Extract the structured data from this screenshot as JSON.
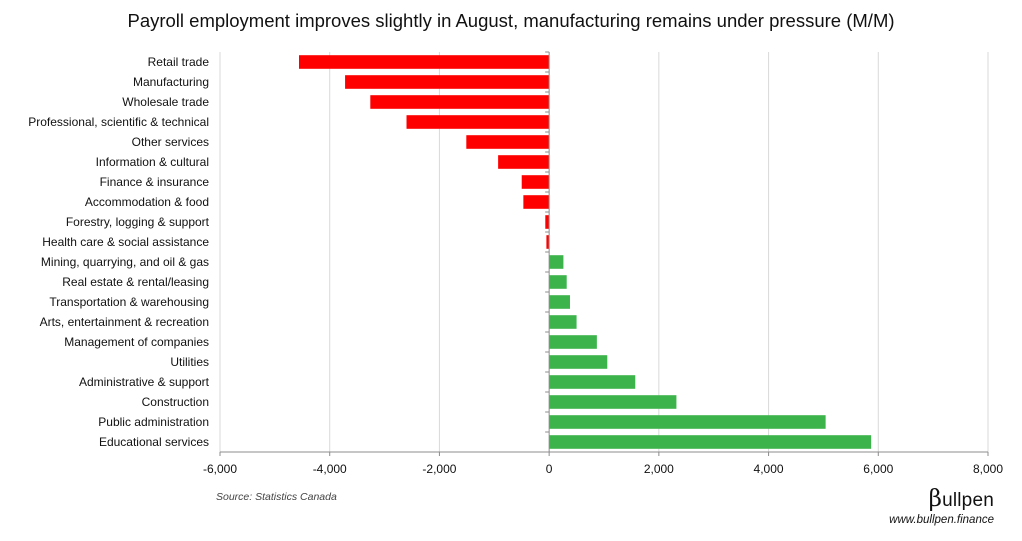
{
  "colors": {
    "negative": "#ff0000",
    "positive": "#3cb44b",
    "grid": "#d9d9d9",
    "axis": "#8c8c8c"
  },
  "chart_data": {
    "type": "bar",
    "orientation": "horizontal",
    "title": "Payroll employment improves slightly in August, manufacturing remains under pressure (M/M)",
    "xlabel": "",
    "ylabel": "",
    "xlim": [
      -6000,
      8000
    ],
    "xticks": [
      -6000,
      -4000,
      -2000,
      0,
      2000,
      4000,
      6000,
      8000
    ],
    "xtick_labels": [
      "-6,000",
      "-4,000",
      "-2,000",
      "0",
      "2,000",
      "4,000",
      "6,000",
      "8,000"
    ],
    "grid": "vertical",
    "categories": [
      "Retail trade",
      "Manufacturing",
      "Wholesale trade",
      "Professional, scientific & technical",
      "Other services",
      "Information & cultural",
      "Finance & insurance",
      "Accommodation & food",
      "Forestry, logging & support",
      "Health care & social assistance",
      "Mining, quarrying, and oil & gas",
      "Real estate & rental/leasing",
      "Transportation & warehousing",
      "Arts, entertainment & recreation",
      "Management of companies",
      "Utilities",
      "Administrative & support",
      "Construction",
      "Public administration",
      "Educational services"
    ],
    "values": [
      -4560,
      -3720,
      -3260,
      -2600,
      -1510,
      -930,
      -500,
      -470,
      -70,
      -50,
      260,
      320,
      380,
      500,
      870,
      1060,
      1570,
      2320,
      5040,
      5870
    ]
  },
  "footer": {
    "source": "Source: Statistics Canada",
    "brand_glyph": "β",
    "brand_rest": "ullpen",
    "url": "www.bullpen.finance"
  }
}
